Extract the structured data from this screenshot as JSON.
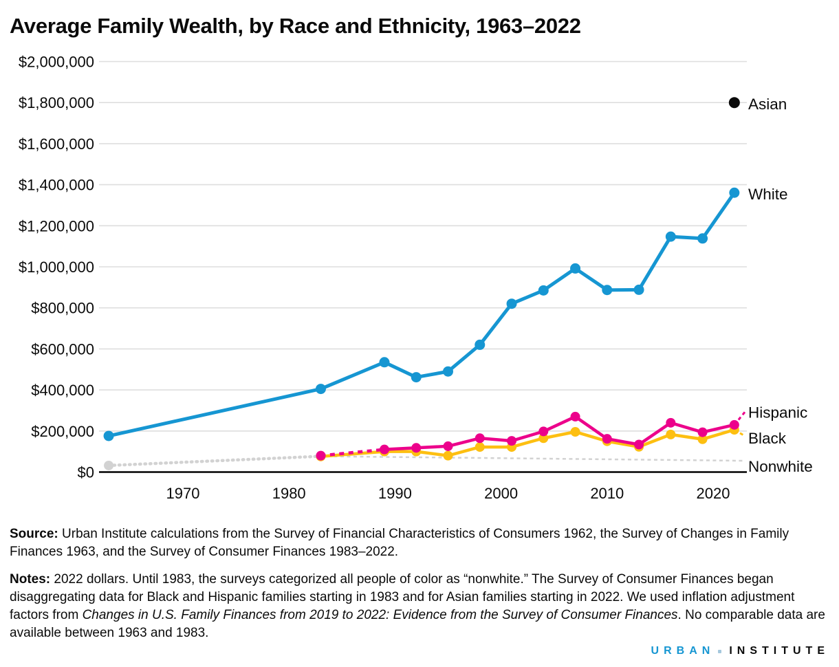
{
  "title": "Average Family Wealth, by Race and Ethnicity, 1963–2022",
  "chart_data": {
    "type": "line",
    "title": "Average Family Wealth, by Race and Ethnicity, 1963–2022",
    "xlabel": "",
    "ylabel": "",
    "ylim": [
      0,
      2000000
    ],
    "ytick_interval": 200000,
    "ytick_labels_top_down": [
      "$2,000,000",
      "$1,800,000",
      "$1,600,000",
      "$1,400,000",
      "$1,200,000",
      "$1,000,000",
      "$800,000",
      "$600,000",
      "$400,000",
      "$200,000",
      "$0"
    ],
    "xtick_years": [
      1970,
      1980,
      1990,
      2000,
      2010,
      2020
    ],
    "xtick_labels": [
      "1970",
      "1980",
      "1990",
      "2000",
      "2010",
      "2020"
    ],
    "grid": true,
    "legend_position": "right-edge-direct-labels",
    "years": [
      1963,
      1983,
      1989,
      1992,
      1995,
      1998,
      2001,
      2004,
      2007,
      2010,
      2013,
      2016,
      2019,
      2022
    ],
    "series": [
      {
        "id": "nonwhite",
        "label": "Nonwhite",
        "color": "#d2d2d2",
        "line_style": "dotted",
        "leader_to_value": 55000,
        "values": [
          32000,
          77000,
          null,
          null,
          null,
          null,
          null,
          null,
          null,
          null,
          null,
          null,
          null,
          null
        ]
      },
      {
        "id": "black",
        "label": "Black",
        "color": "#fdbf11",
        "line_style": "solid",
        "leader_to_value": 176000,
        "values": [
          null,
          76000,
          100000,
          100000,
          80000,
          122000,
          122000,
          165000,
          196000,
          150000,
          123000,
          183000,
          160000,
          206000
        ]
      },
      {
        "id": "hispanic",
        "label": "Hispanic",
        "color": "#ec008b",
        "line_style": "solid",
        "dashed_segment_years": [
          1983,
          1989
        ],
        "leader_to_value": 292000,
        "values": [
          null,
          80000,
          110000,
          118000,
          126000,
          165000,
          152000,
          198000,
          270000,
          162000,
          134000,
          240000,
          194000,
          230000
        ]
      },
      {
        "id": "white",
        "label": "White",
        "color": "#1696d2",
        "line_style": "solid",
        "values": [
          176000,
          405000,
          535000,
          462000,
          490000,
          620000,
          820000,
          885000,
          992000,
          887000,
          888000,
          1147000,
          1138000,
          1361000
        ]
      },
      {
        "id": "asian",
        "label": "Asian",
        "color": "#0a0a0a",
        "line_style": "point-only",
        "values": [
          null,
          null,
          null,
          null,
          null,
          null,
          null,
          null,
          null,
          null,
          null,
          null,
          null,
          1800000
        ]
      }
    ]
  },
  "source": {
    "label": "Source:",
    "text": " Urban Institute calculations from the Survey of Financial Characteristics of Consumers 1962, the Survey of Changes in Family Finances 1963, and the Survey of Consumer Finances 1983–2022."
  },
  "notes": {
    "label": "Notes:",
    "part1": " 2022 dollars. Until 1983, the surveys categorized all people of color as “nonwhite.” The Survey of Consumer Finances began disaggregating data for Black and Hispanic families starting in 1983 and for Asian families starting in 2022. We used inflation adjustment factors from ",
    "italic": "Changes in U.S. Family Finances from 2019 to 2022: Evidence from the Survey of Consumer Finances",
    "part2": ". No comparable data are available between 1963 and 1983."
  },
  "logo": {
    "first": "URBAN",
    "second": "INSTITUTE"
  },
  "colors": {
    "white_series": "#1696d2",
    "hispanic_series": "#ec008b",
    "black_series": "#fdbf11",
    "nonwhite_series": "#d2d2d2",
    "asian_series": "#0a0a0a",
    "gridline": "#dedede",
    "axis": "#000000",
    "text": "#0a0a0a"
  }
}
